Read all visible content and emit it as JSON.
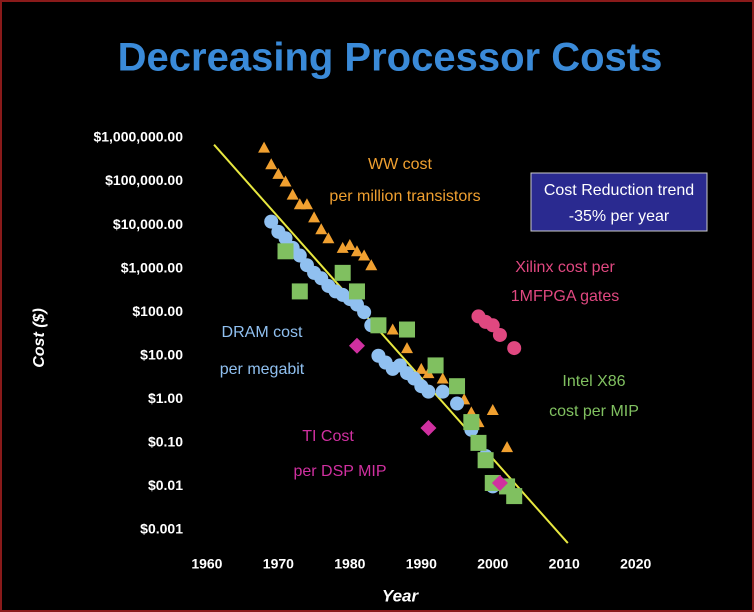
{
  "chart_data": {
    "type": "scatter",
    "title": "Decreasing Processor Costs",
    "xlabel": "Year",
    "ylabel": "Cost ($)",
    "log_y": true,
    "xlim": [
      1958,
      2022
    ],
    "xticks": [
      1960,
      1970,
      1980,
      1990,
      2000,
      2010,
      2020
    ],
    "ylim": [
      0.0005,
      1500000
    ],
    "yticks": [
      {
        "value": 1000000,
        "label": "$1,000,000.00"
      },
      {
        "value": 100000,
        "label": "$100,000.00"
      },
      {
        "value": 10000,
        "label": "$10,000.00"
      },
      {
        "value": 1000,
        "label": "$1,000.00"
      },
      {
        "value": 100,
        "label": "$100.00"
      },
      {
        "value": 10,
        "label": "$10.00"
      },
      {
        "value": 1,
        "label": "$1.00"
      },
      {
        "value": 0.1,
        "label": "$0.10"
      },
      {
        "value": 0.01,
        "label": "$0.01"
      },
      {
        "value": 0.001,
        "label": "$0.001"
      }
    ],
    "series": [
      {
        "label": [
          "WW cost",
          "per million transistors"
        ],
        "marker": "triangle",
        "color": "#f0a030",
        "x": [
          1968,
          1969,
          1970,
          1971,
          1972,
          1973,
          1974,
          1975,
          1976,
          1977,
          1979,
          1980,
          1981,
          1982,
          1983,
          1984,
          1986,
          1988,
          1990,
          1991,
          1993,
          1995,
          1996,
          1997,
          1998,
          2000,
          2002
        ],
        "values": [
          600000,
          250000,
          150000,
          100000,
          50000,
          30000,
          30000,
          15000,
          8000,
          5000,
          3000,
          3500,
          2500,
          2000,
          1200,
          50,
          40,
          15,
          5,
          4,
          3,
          2,
          1,
          0.5,
          0.3,
          0.57,
          0.08
        ]
      },
      {
        "label": [
          "DRAM cost",
          "per megabit"
        ],
        "marker": "circle",
        "color": "#90c0f0",
        "x": [
          1969,
          1970,
          1971,
          1972,
          1973,
          1974,
          1975,
          1976,
          1977,
          1978,
          1979,
          1980,
          1981,
          1982,
          1983,
          1984,
          1985,
          1986,
          1987,
          1988,
          1989,
          1990,
          1991,
          1993,
          1995,
          1997,
          1998,
          1999,
          2000
        ],
        "values": [
          12000,
          7000,
          5000,
          3000,
          2000,
          1200,
          800,
          600,
          400,
          300,
          250,
          200,
          150,
          100,
          50,
          10,
          7,
          5,
          6,
          4,
          3,
          2,
          1.5,
          1.5,
          0.8,
          0.2,
          0.1,
          0.05,
          0.01
        ]
      },
      {
        "label": [
          "Intel X86",
          "cost per MIP"
        ],
        "marker": "square",
        "color": "#80c060",
        "x": [
          1971,
          1973,
          1979,
          1981,
          1984,
          1988,
          1992,
          1995,
          1997,
          1998,
          1999,
          2000,
          2002,
          2003
        ],
        "values": [
          2500,
          300,
          800,
          300,
          50,
          40,
          6,
          2,
          0.3,
          0.1,
          0.04,
          0.012,
          0.01,
          0.006
        ]
      },
      {
        "label": [
          "Xilinx cost per",
          "1MFPGA gates"
        ],
        "marker": "circle",
        "color": "#e04880",
        "x": [
          1998,
          1999,
          2000,
          2001,
          2003
        ],
        "values": [
          80,
          60,
          50,
          30,
          15
        ]
      },
      {
        "label": [
          "TI Cost",
          "per DSP MIP"
        ],
        "marker": "diamond",
        "color": "#d030a0",
        "x": [
          1981,
          1991,
          2001
        ],
        "values": [
          17,
          0.22,
          0.012
        ]
      },
      {
        "label": [
          "Cost Reduction trend",
          "-35% per year"
        ],
        "marker": "line",
        "color": "#e8e840",
        "x": [
          1961,
          2010.5
        ],
        "values": [
          700000,
          0.0005
        ]
      }
    ]
  }
}
